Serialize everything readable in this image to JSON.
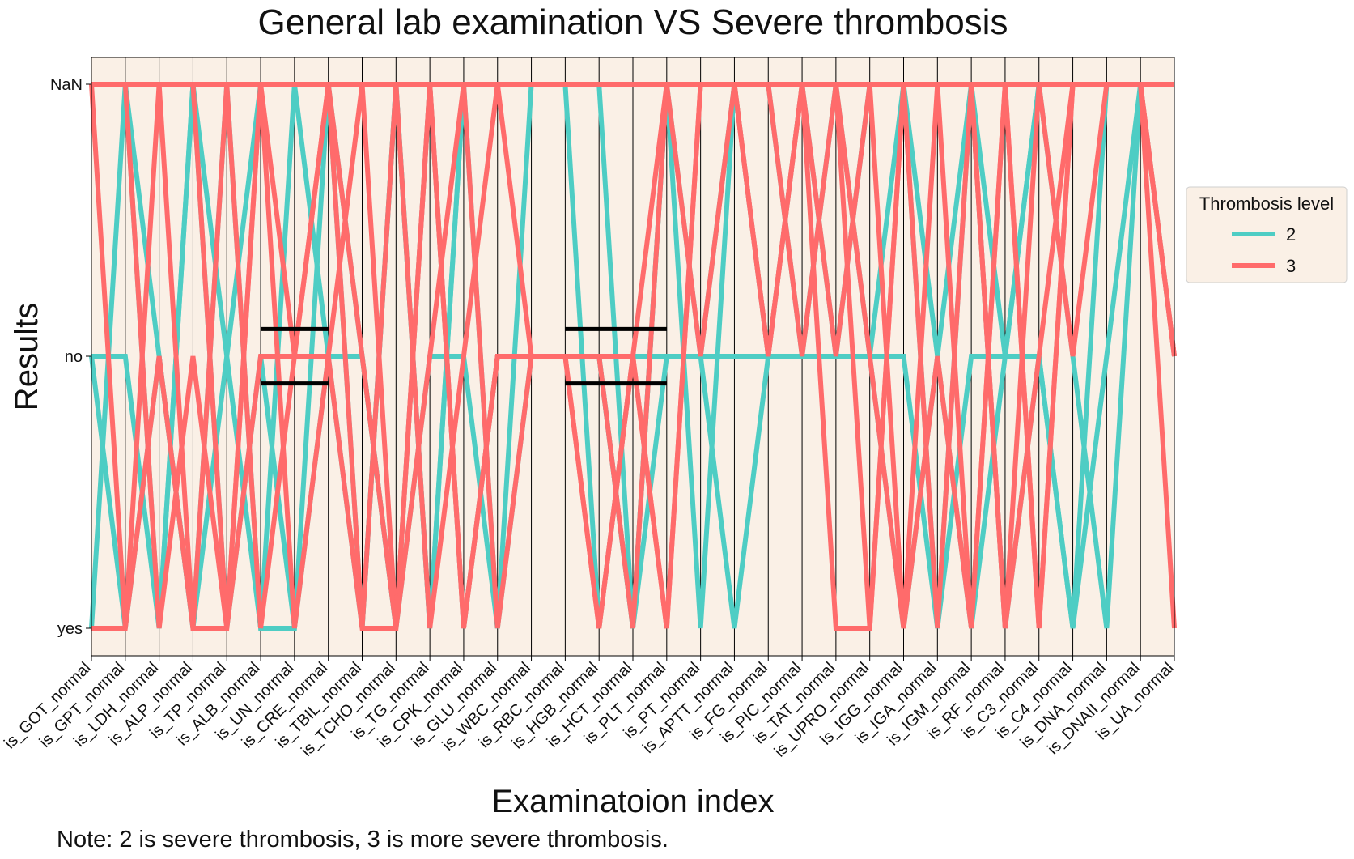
{
  "chart_data": {
    "type": "line",
    "title": "General lab examination VS Severe thrombosis",
    "xlabel": "Examinatoion index",
    "ylabel": "Results",
    "note": "Note: 2 is severe thrombosis, 3 is more severe thrombosis.",
    "categories": [
      "is_GOT_normal",
      "is_GPT_normal",
      "is_LDH_normal",
      "is_ALP_normal",
      "is_TP_normal",
      "is_ALB_normal",
      "is_UN_normal",
      "is_CRE_normal",
      "is_TBIL_normal",
      "is_TCHO_normal",
      "is_TG_normal",
      "is_CPK_normal",
      "is_GLU_normal",
      "is_WBC_normal",
      "is_RBC_normal",
      "is_HGB_normal",
      "is_HCT_normal",
      "is_PLT_normal",
      "is_PT_normal",
      "is_APTT_normal",
      "is_FG_normal",
      "is_PIC_normal",
      "is_TAT_normal",
      "is_UPRO_normal",
      "is_IGG_normal",
      "is_IGA_normal",
      "is_IGM_normal",
      "is_RF_normal",
      "is_C3_normal",
      "is_C4_normal",
      "is_DNA_normal",
      "is_DNAII_normal",
      "is_UA_normal"
    ],
    "y_levels": [
      "yes",
      "no",
      "NaN"
    ],
    "legend": {
      "title": "Thrombosis level",
      "position": "right",
      "entries": [
        "2",
        "3"
      ]
    },
    "series": [
      {
        "name": "2",
        "color": "#4ecdc4",
        "values": [
          "no",
          "yes",
          "no",
          "yes",
          "NaN",
          "yes",
          "yes",
          "NaN",
          "no",
          "yes",
          "NaN",
          "yes",
          "no",
          "no",
          "no",
          "no",
          "yes",
          "NaN",
          "no",
          "yes",
          "no",
          "no",
          "NaN",
          "no",
          "yes",
          "no",
          "yes",
          "no",
          "NaN",
          "no",
          "yes",
          "NaN",
          "no"
        ]
      },
      {
        "name": "2",
        "color": "#4ecdc4",
        "values": [
          "yes",
          "NaN",
          "yes",
          "NaN",
          "no",
          "NaN",
          "NaN",
          "no",
          "yes",
          "NaN",
          "yes",
          "NaN",
          "yes",
          "NaN",
          "NaN",
          "NaN",
          "yes",
          "NaN",
          "yes",
          "NaN",
          "no",
          "NaN",
          "no",
          "NaN",
          "NaN",
          "no",
          "NaN",
          "yes",
          "no",
          "yes",
          "no",
          "NaN",
          "NaN"
        ]
      },
      {
        "name": "2",
        "color": "#4ecdc4",
        "values": [
          "no",
          "no",
          "yes",
          "NaN",
          "yes",
          "no",
          "yes",
          "no",
          "no",
          "yes",
          "no",
          "no",
          "yes",
          "no",
          "no",
          "no",
          "yes",
          "no",
          "no",
          "NaN",
          "NaN",
          "no",
          "no",
          "no",
          "no",
          "yes",
          "no",
          "no",
          "NaN",
          "NaN",
          "NaN",
          "NaN",
          "NaN"
        ]
      },
      {
        "name": "2",
        "color": "#4ecdc4",
        "values": [
          "NaN",
          "NaN",
          "no",
          "yes",
          "no",
          "yes",
          "NaN",
          "NaN",
          "yes",
          "NaN",
          "yes",
          "NaN",
          "NaN",
          "NaN",
          "NaN",
          "yes",
          "no",
          "no",
          "no",
          "no",
          "no",
          "no",
          "no",
          "no",
          "NaN",
          "yes",
          "NaN",
          "no",
          "no",
          "yes",
          "NaN",
          "NaN",
          "NaN"
        ]
      },
      {
        "name": "3",
        "color": "#ff6b6b",
        "values": [
          "yes",
          "yes",
          "no",
          "yes",
          "NaN",
          "yes",
          "no",
          "NaN",
          "yes",
          "NaN",
          "yes",
          "no",
          "NaN",
          "no",
          "no",
          "no",
          "no",
          "yes",
          "NaN",
          "NaN",
          "NaN",
          "NaN",
          "NaN",
          "yes",
          "NaN",
          "NaN",
          "yes",
          "NaN",
          "yes",
          "NaN",
          "NaN",
          "NaN",
          "no"
        ]
      },
      {
        "name": "3",
        "color": "#ff6b6b",
        "values": [
          "NaN",
          "NaN",
          "yes",
          "no",
          "yes",
          "NaN",
          "yes",
          "no",
          "NaN",
          "yes",
          "NaN",
          "yes",
          "no",
          "no",
          "no",
          "yes",
          "no",
          "NaN",
          "no",
          "NaN",
          "no",
          "NaN",
          "no",
          "NaN",
          "yes",
          "NaN",
          "NaN",
          "yes",
          "NaN",
          "no",
          "NaN",
          "NaN",
          "yes"
        ]
      },
      {
        "name": "3",
        "color": "#ff6b6b",
        "values": [
          "NaN",
          "yes",
          "NaN",
          "yes",
          "yes",
          "NaN",
          "no",
          "no",
          "yes",
          "yes",
          "NaN",
          "yes",
          "no",
          "no",
          "no",
          "no",
          "yes",
          "NaN",
          "NaN",
          "NaN",
          "no",
          "NaN",
          "yes",
          "yes",
          "NaN",
          "yes",
          "NaN",
          "yes",
          "no",
          "NaN",
          "NaN",
          "NaN",
          "no"
        ]
      },
      {
        "name": "3",
        "color": "#ff6b6b",
        "values": [
          "NaN",
          "NaN",
          "NaN",
          "NaN",
          "yes",
          "no",
          "no",
          "NaN",
          "no",
          "yes",
          "no",
          "NaN",
          "yes",
          "no",
          "no",
          "yes",
          "no",
          "yes",
          "NaN",
          "NaN",
          "NaN",
          "no",
          "NaN",
          "no",
          "yes",
          "no",
          "yes",
          "NaN",
          "yes",
          "NaN",
          "NaN",
          "NaN",
          "NaN"
        ]
      },
      {
        "name": "3",
        "color": "#ff6b6b",
        "values": [
          "NaN",
          "NaN",
          "NaN",
          "NaN",
          "NaN",
          "NaN",
          "NaN",
          "NaN",
          "NaN",
          "NaN",
          "NaN",
          "NaN",
          "NaN",
          "NaN",
          "NaN",
          "NaN",
          "NaN",
          "NaN",
          "NaN",
          "NaN",
          "NaN",
          "NaN",
          "NaN",
          "NaN",
          "NaN",
          "NaN",
          "NaN",
          "NaN",
          "NaN",
          "NaN",
          "NaN",
          "NaN",
          "NaN"
        ]
      }
    ],
    "reference_lines": [
      {
        "name": "median-upper",
        "color": "#000000",
        "from": "is_ALB_normal",
        "to": "is_CRE_normal",
        "level": "no",
        "offset": 0.1
      },
      {
        "name": "median-lower",
        "color": "#000000",
        "from": "is_ALB_normal",
        "to": "is_CRE_normal",
        "level": "no",
        "offset": -0.1
      },
      {
        "name": "median-upper",
        "color": "#000000",
        "from": "is_RBC_normal",
        "to": "is_PLT_normal",
        "level": "no",
        "offset": 0.1
      },
      {
        "name": "median-lower",
        "color": "#000000",
        "from": "is_RBC_normal",
        "to": "is_PLT_normal",
        "level": "no",
        "offset": -0.1
      }
    ],
    "grid": false,
    "background_color": "#faf0e6"
  }
}
